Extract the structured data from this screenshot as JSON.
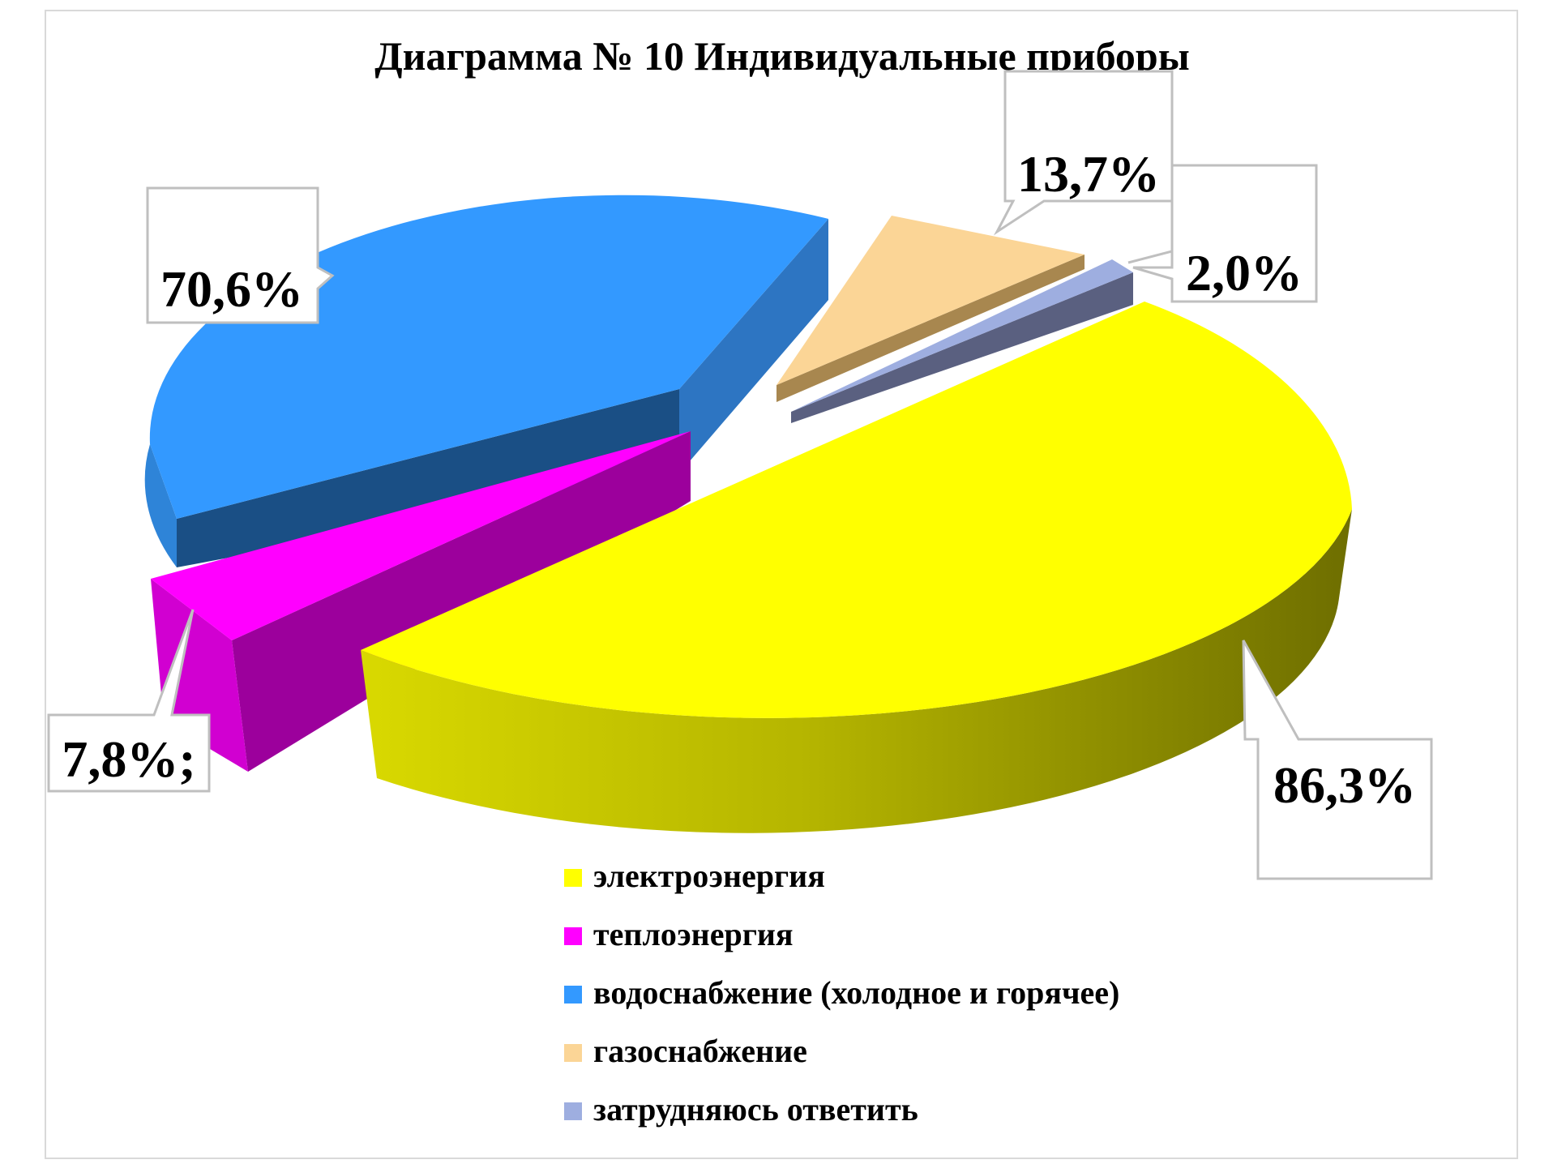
{
  "chart_data": {
    "type": "pie",
    "title": "Диаграмма  № 10 Индивидуальные  приборы",
    "slices": [
      {
        "name": "электроэнергия",
        "value": 86.3,
        "label": "86,3%",
        "color": "#ffff00"
      },
      {
        "name": "теплоэнергия",
        "value": 7.8,
        "label": "7,8%;",
        "color": "#ff00ff"
      },
      {
        "name": "водоснабжение (холодное и горячее)",
        "value": 70.6,
        "label": "70,6%",
        "color": "#3399ff"
      },
      {
        "name": "газоснабжение",
        "value": 13.7,
        "label": "13,7%",
        "color": "#fbd596"
      },
      {
        "name": "затрудняюсь  ответить",
        "value": 2.0,
        "label": "2,0%",
        "color": "#9eaee0"
      }
    ],
    "legend_position": "bottom"
  }
}
